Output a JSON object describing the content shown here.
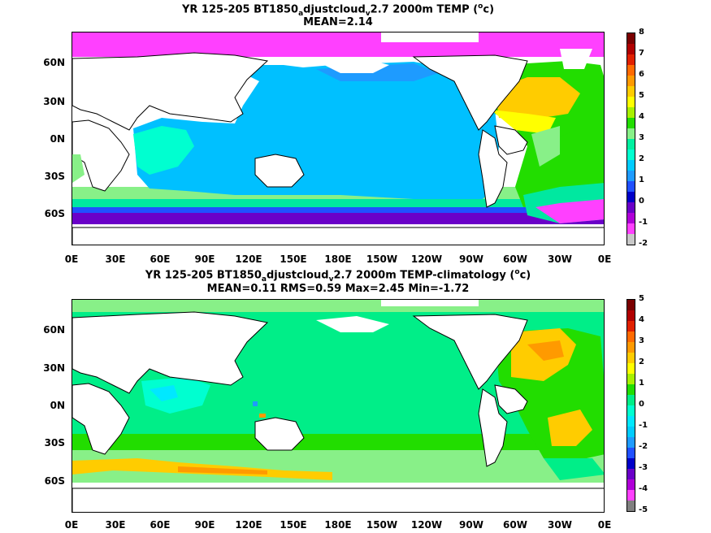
{
  "panel1": {
    "title_pre": "YR 125-205 BT1850",
    "title_sub1": "a",
    "title_mid": "djustcloud",
    "title_sub2": "v",
    "title_post": "2.7 2000m TEMP (",
    "title_sup": "o",
    "title_end": "c)",
    "stats": "MEAN=2.14",
    "lat_labels": [
      "60N",
      "30N",
      "0N",
      "30S",
      "60S"
    ],
    "lon_labels": [
      "0E",
      "30E",
      "60E",
      "90E",
      "120E",
      "150E",
      "180E",
      "150W",
      "120W",
      "90W",
      "60W",
      "30W",
      "0E"
    ],
    "colorbar_ticks": [
      "8",
      "7",
      "6",
      "5",
      "4",
      "3",
      "2",
      "1",
      "0",
      "-1",
      "-2"
    ],
    "colorbar_colors": [
      "#7a0000",
      "#b00000",
      "#e02000",
      "#ff6a00",
      "#ff9a00",
      "#ffcc00",
      "#ffff00",
      "#a8f000",
      "#22dd00",
      "#88f088",
      "#00f0a0",
      "#00ffd0",
      "#00ccff",
      "#1e9bff",
      "#2050ff",
      "#0000c8",
      "#6a00c8",
      "#b000d8",
      "#ff40ff",
      "#c8c8c8"
    ]
  },
  "panel2": {
    "title_pre": "YR 125-205 BT1850",
    "title_sub1": "a",
    "title_mid": "djustcloud",
    "title_sub2": "v",
    "title_post": "2.7 2000m TEMP-climatology (",
    "title_sup": "o",
    "title_end": "c)",
    "stats": "MEAN=0.11   RMS=0.59   Max=2.45   Min=-1.72",
    "lat_labels": [
      "60N",
      "30N",
      "0N",
      "30S",
      "60S"
    ],
    "lon_labels": [
      "0E",
      "30E",
      "60E",
      "90E",
      "120E",
      "150E",
      "180E",
      "150W",
      "120W",
      "90W",
      "60W",
      "30W",
      "0E"
    ],
    "colorbar_ticks": [
      "5",
      "4",
      "3",
      "2",
      "1",
      "0",
      "-1",
      "-2",
      "-3",
      "-4",
      "-5"
    ],
    "colorbar_colors": [
      "#7a0000",
      "#b00000",
      "#e02000",
      "#ff6a00",
      "#ff9a00",
      "#ffcc00",
      "#ffff00",
      "#a8f000",
      "#22dd00",
      "#00ee88",
      "#00ffd0",
      "#00e8ff",
      "#00ccff",
      "#1e9bff",
      "#2050ff",
      "#0000c8",
      "#6a00c8",
      "#b000d8",
      "#ff40ff",
      "#808080"
    ]
  }
}
